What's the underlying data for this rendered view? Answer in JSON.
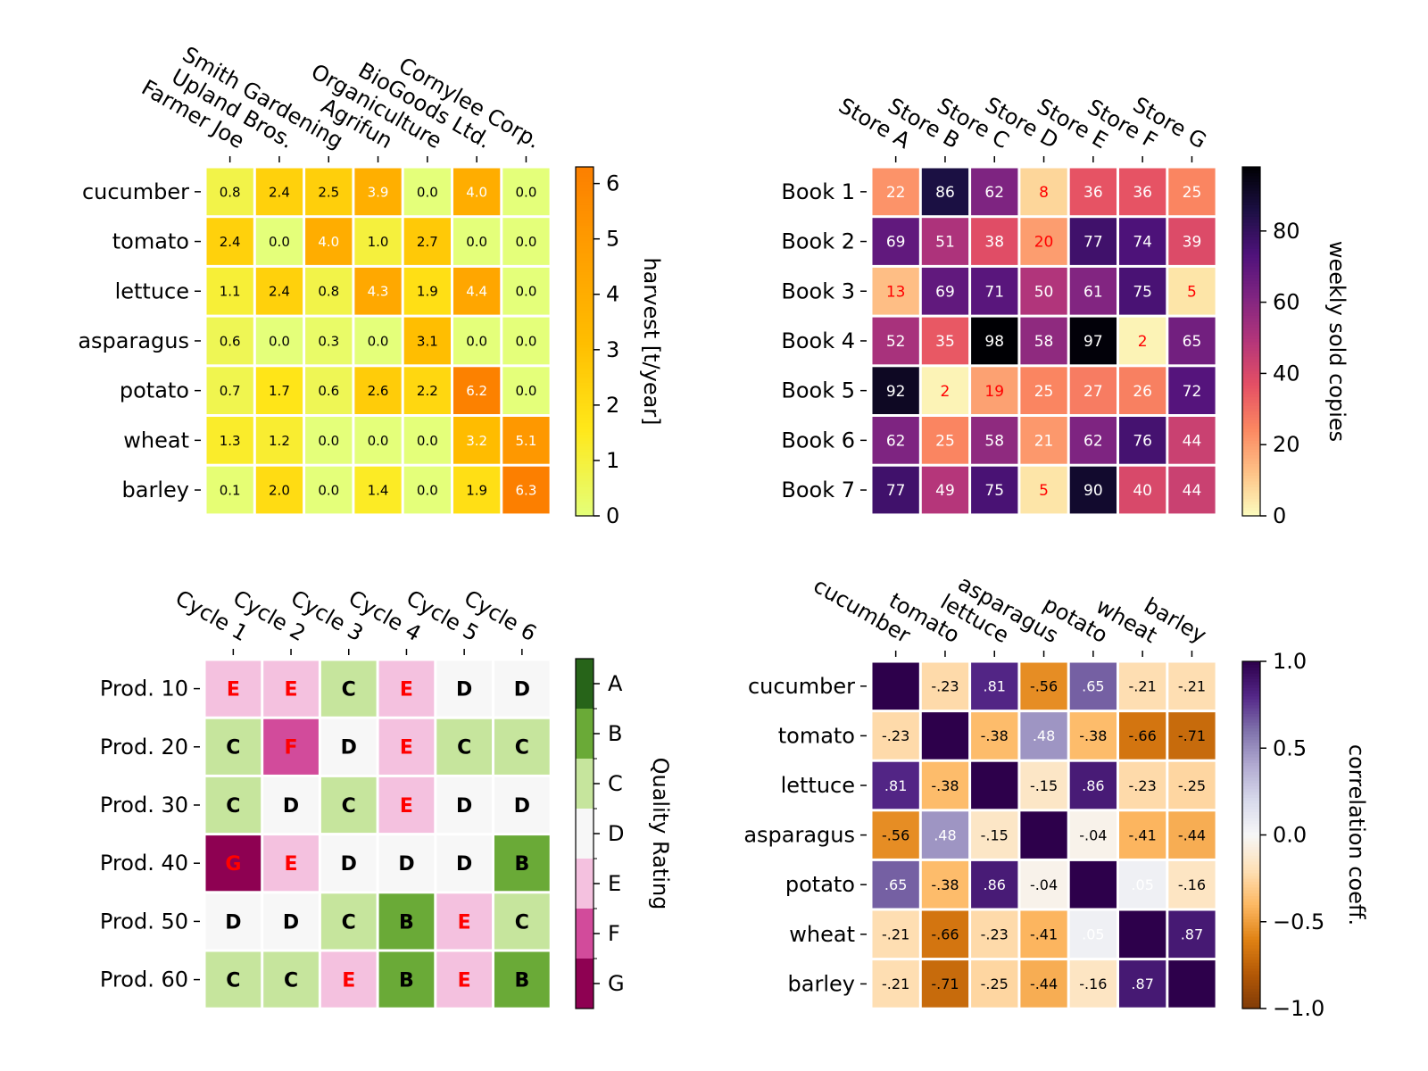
{
  "chart_data": [
    {
      "type": "heatmap",
      "rows": [
        "cucumber",
        "tomato",
        "lettuce",
        "asparagus",
        "potato",
        "wheat",
        "barley"
      ],
      "columns": [
        "Farmer Joe",
        "Upland Bros.",
        "Smith Gardening",
        "Agrifun",
        "Organiculture",
        "BioGoods Ltd.",
        "Cornylee Corp."
      ],
      "values": [
        [
          0.8,
          2.4,
          2.5,
          3.9,
          0.0,
          4.0,
          0.0
        ],
        [
          2.4,
          0.0,
          4.0,
          1.0,
          2.7,
          0.0,
          0.0
        ],
        [
          1.1,
          2.4,
          0.8,
          4.3,
          1.9,
          4.4,
          0.0
        ],
        [
          0.6,
          0.0,
          0.3,
          0.0,
          3.1,
          0.0,
          0.0
        ],
        [
          0.7,
          1.7,
          0.6,
          2.6,
          2.2,
          6.2,
          0.0
        ],
        [
          1.3,
          1.2,
          0.0,
          0.0,
          0.0,
          3.2,
          5.1
        ],
        [
          0.1,
          2.0,
          0.0,
          1.4,
          0.0,
          1.9,
          6.3
        ]
      ],
      "colormap": "Wistia",
      "colorbar": {
        "label": "harvest [t/year]",
        "range": [
          0,
          6.3
        ],
        "ticks": [
          0,
          1,
          2,
          3,
          4,
          5,
          6
        ],
        "tick_labels": [
          "0",
          "1",
          "2",
          "3",
          "4",
          "5",
          "6"
        ]
      },
      "text_colors": [
        "#000000",
        "#ffffff"
      ]
    },
    {
      "type": "heatmap",
      "rows": [
        "Book 1",
        "Book 2",
        "Book 3",
        "Book 4",
        "Book 5",
        "Book 6",
        "Book 7"
      ],
      "columns": [
        "Store A",
        "Store B",
        "Store C",
        "Store D",
        "Store E",
        "Store F",
        "Store G"
      ],
      "values": [
        [
          22,
          86,
          62,
          8,
          36,
          36,
          25
        ],
        [
          69,
          51,
          38,
          20,
          77,
          74,
          39
        ],
        [
          13,
          69,
          71,
          50,
          61,
          75,
          5
        ],
        [
          52,
          35,
          98,
          58,
          97,
          2,
          65
        ],
        [
          92,
          2,
          19,
          25,
          27,
          26,
          72
        ],
        [
          62,
          25,
          58,
          21,
          62,
          76,
          44
        ],
        [
          77,
          49,
          75,
          5,
          90,
          40,
          44
        ]
      ],
      "colormap": "magma_r",
      "colorbar": {
        "label": "weekly sold copies",
        "range": [
          0,
          98
        ],
        "ticks": [
          0,
          20,
          40,
          60,
          80
        ],
        "tick_labels": [
          "0",
          "20",
          "40",
          "60",
          "80"
        ]
      },
      "text_colors": [
        "#ff0000",
        "#ffffff"
      ]
    },
    {
      "type": "heatmap",
      "rows": [
        "Prod. 10",
        "Prod. 20",
        "Prod. 30",
        "Prod. 40",
        "Prod. 50",
        "Prod. 60"
      ],
      "columns": [
        "Cycle 1",
        "Cycle 2",
        "Cycle 3",
        "Cycle 4",
        "Cycle 5",
        "Cycle 6"
      ],
      "values": [
        [
          "E",
          "E",
          "C",
          "E",
          "D",
          "D"
        ],
        [
          "C",
          "F",
          "D",
          "E",
          "C",
          "C"
        ],
        [
          "C",
          "D",
          "C",
          "E",
          "D",
          "D"
        ],
        [
          "G",
          "E",
          "D",
          "D",
          "D",
          "B"
        ],
        [
          "D",
          "D",
          "C",
          "B",
          "E",
          "C"
        ],
        [
          "C",
          "C",
          "E",
          "B",
          "E",
          "B"
        ]
      ],
      "colormap": "PiYG (7 discrete levels)",
      "colorbar": {
        "label": "Quality Rating",
        "tick_labels": [
          "A",
          "B",
          "C",
          "D",
          "E",
          "F",
          "G"
        ]
      },
      "category_colors": {
        "A": "#276419",
        "B": "#6aaa37",
        "C": "#c6e59d",
        "D": "#f7f7f7",
        "E": "#f4c1df",
        "F": "#d24b9b",
        "G": "#8e0152"
      },
      "text_colors": [
        "#000000",
        "#ff0000"
      ]
    },
    {
      "type": "heatmap",
      "rows": [
        "cucumber",
        "tomato",
        "lettuce",
        "asparagus",
        "potato",
        "wheat",
        "barley"
      ],
      "columns": [
        "cucumber",
        "tomato",
        "lettuce",
        "asparagus",
        "potato",
        "wheat",
        "barley"
      ],
      "values": [
        [
          1,
          -0.23,
          0.81,
          -0.56,
          0.65,
          -0.21,
          -0.21
        ],
        [
          -0.23,
          1,
          -0.38,
          0.48,
          -0.38,
          -0.66,
          -0.71
        ],
        [
          0.81,
          -0.38,
          1,
          -0.15,
          0.86,
          -0.23,
          -0.25
        ],
        [
          -0.56,
          0.48,
          -0.15,
          1,
          -0.04,
          -0.41,
          -0.44
        ],
        [
          0.65,
          -0.38,
          0.86,
          -0.04,
          1,
          0.05,
          -0.16
        ],
        [
          -0.21,
          -0.66,
          -0.23,
          -0.41,
          0.05,
          1,
          0.87
        ],
        [
          -0.21,
          -0.71,
          -0.25,
          -0.44,
          -0.16,
          0.87,
          1
        ]
      ],
      "colormap": "PuOr",
      "colorbar": {
        "label": "correlation coeff.",
        "range": [
          -1,
          1
        ],
        "ticks": [
          -1,
          -0.5,
          0,
          0.5,
          1
        ],
        "tick_labels": [
          "−1.0",
          "−0.5",
          "0.0",
          "0.5",
          "1.0"
        ]
      },
      "text_colors": [
        "#000000",
        "#ffffff"
      ]
    }
  ]
}
